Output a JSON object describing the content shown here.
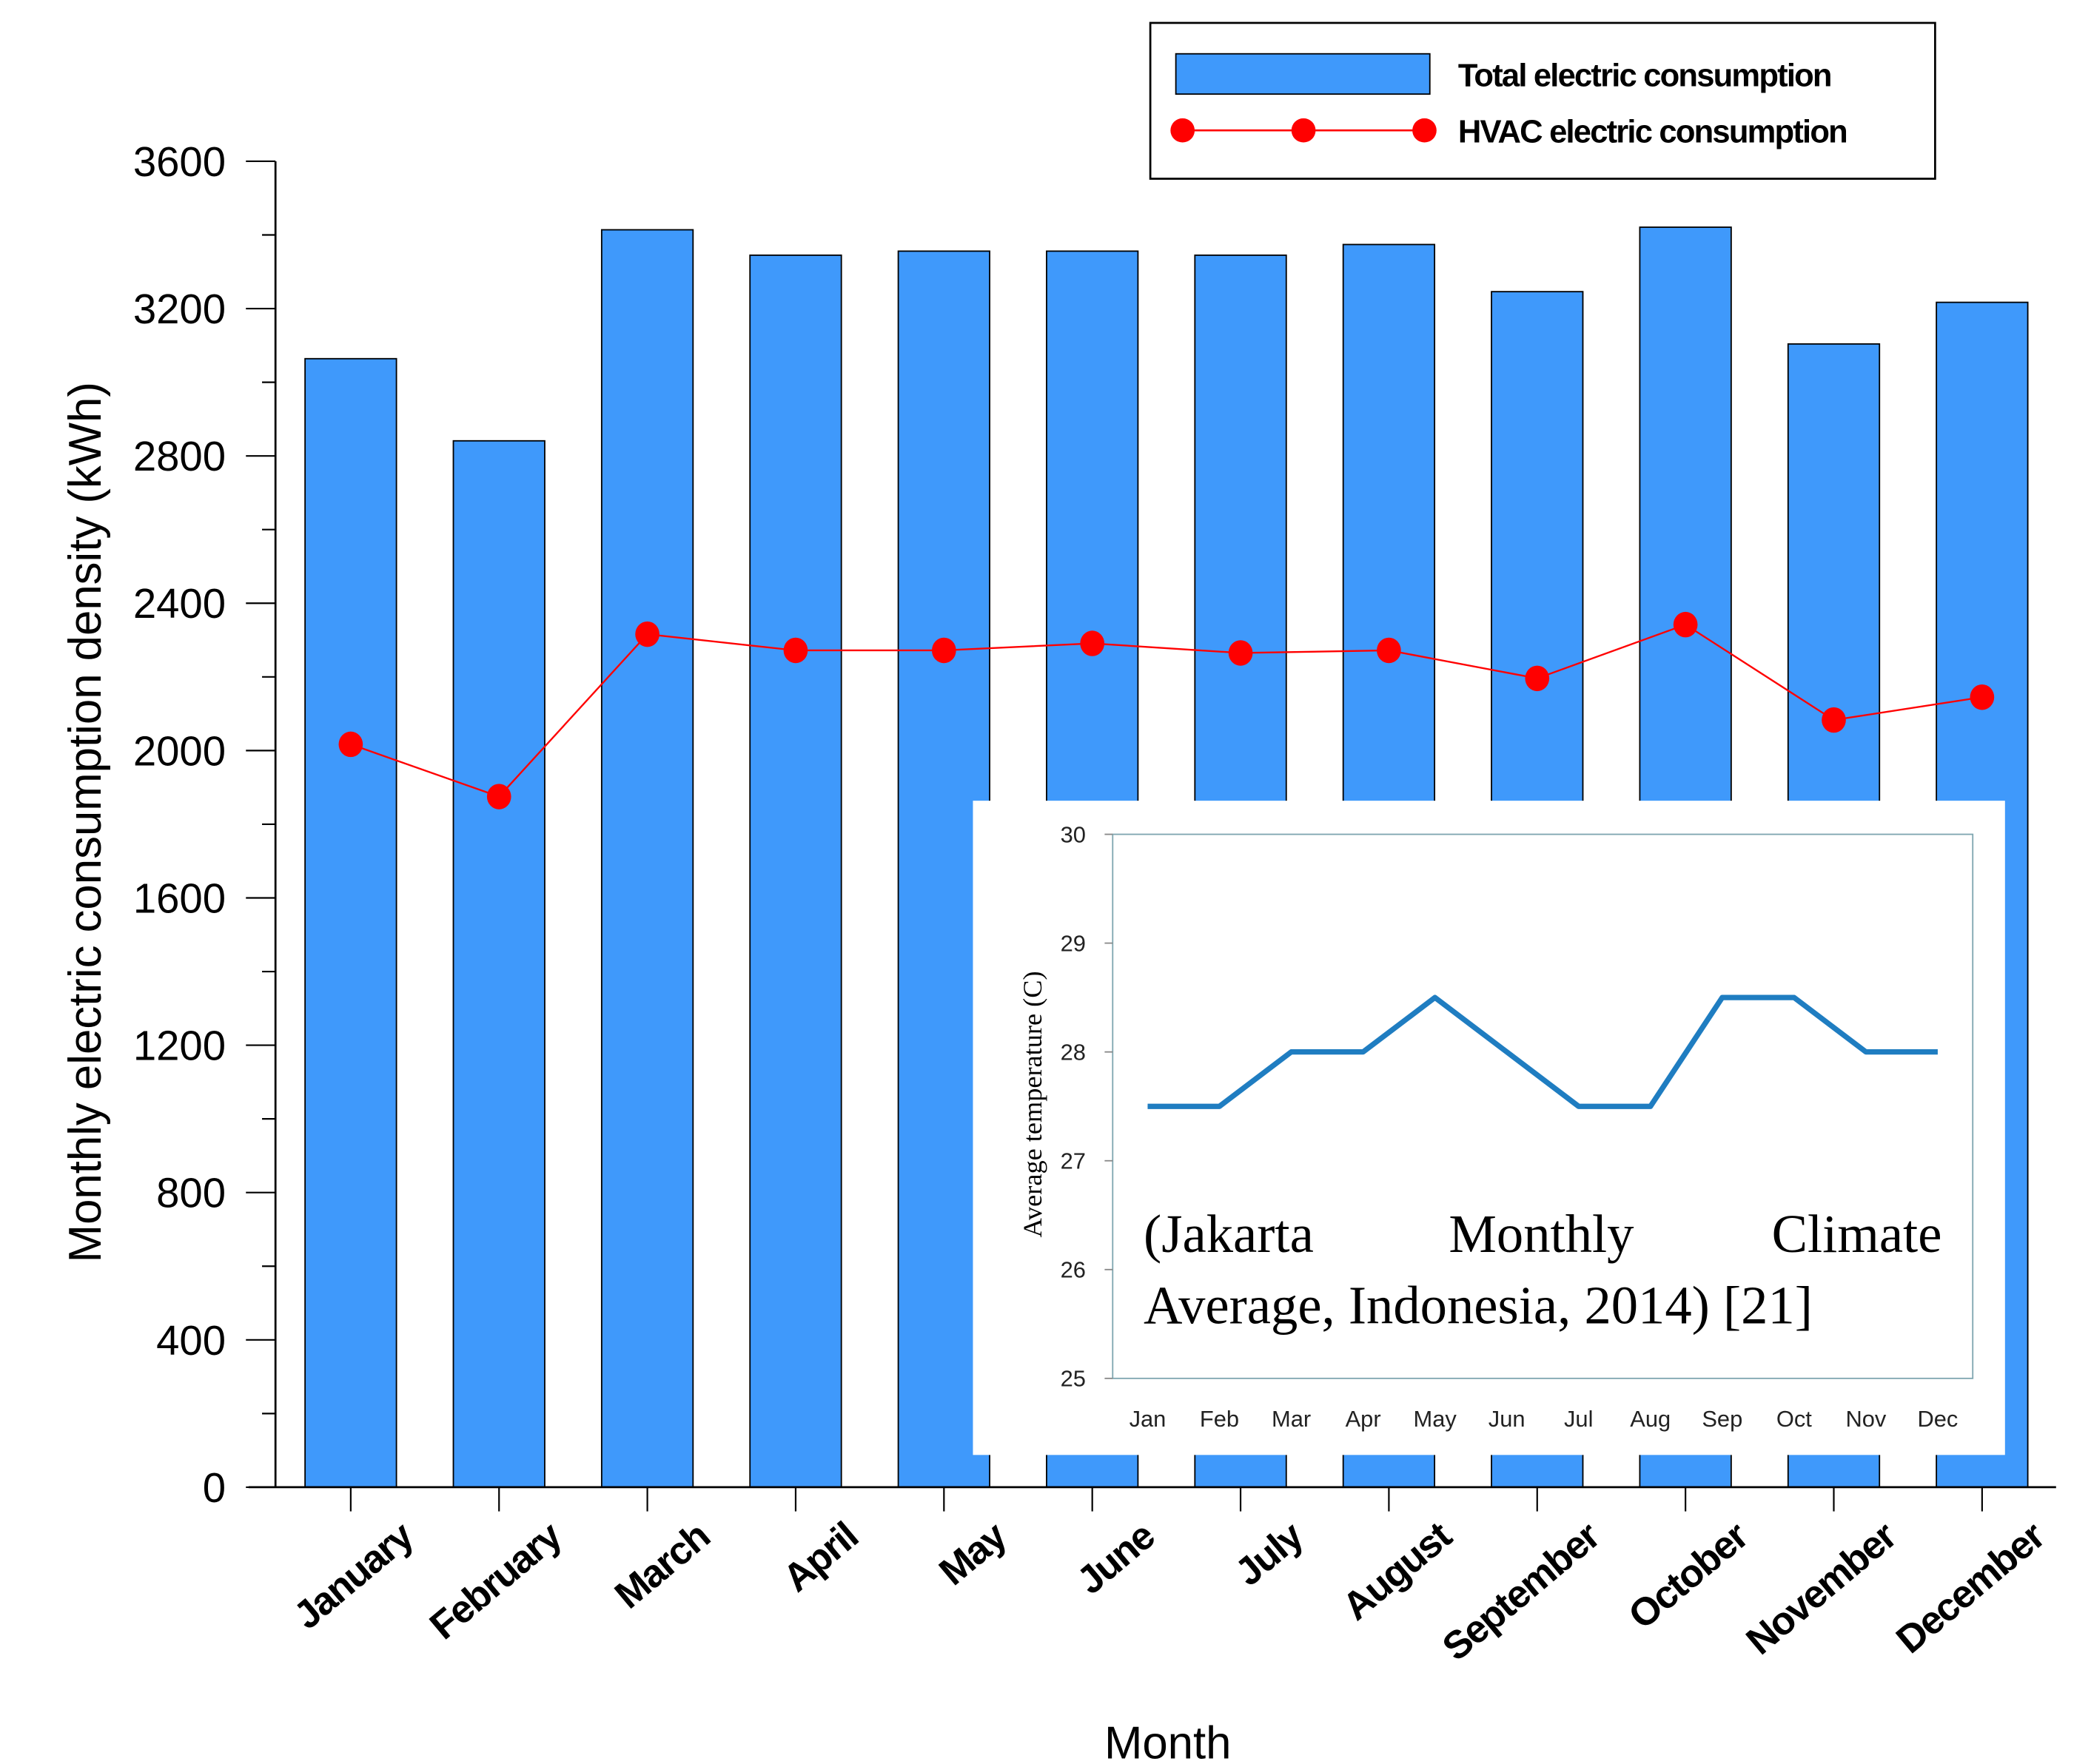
{
  "chart_data": [
    {
      "type": "bar+line",
      "title": "",
      "xlabel": "Month",
      "ylabel": "Monthly electric consumption density (kWh)",
      "ylim": [
        0,
        3600
      ],
      "yticks": [
        0,
        400,
        800,
        1200,
        1600,
        2000,
        2400,
        2800,
        3200,
        3600
      ],
      "categories": [
        "January",
        "February",
        "March",
        "April",
        "May",
        "June",
        "July",
        "August",
        "September",
        "October",
        "November",
        "December"
      ],
      "series": [
        {
          "name": "Total electric consumption",
          "kind": "bar",
          "color": "#3f99fb",
          "values": [
            3064,
            2841,
            3414,
            3345,
            3356,
            3356,
            3345,
            3374,
            3246,
            3421,
            3104,
            3217
          ]
        },
        {
          "name": "HVAC electric consumption",
          "kind": "line",
          "color": "#ff0000",
          "values": [
            2017,
            1875,
            2316,
            2272,
            2272,
            2291,
            2265,
            2272,
            2196,
            2342,
            2083,
            2145
          ]
        }
      ],
      "legend": "top-right",
      "grid": false
    },
    {
      "type": "line",
      "title": "",
      "xlabel": "",
      "ylabel": "Average temperature (C)",
      "ylim": [
        25,
        30
      ],
      "yticks": [
        25,
        26,
        27,
        28,
        29,
        30
      ],
      "categories": [
        "Jan",
        "Feb",
        "Mar",
        "Apr",
        "May",
        "Jun",
        "Jul",
        "Aug",
        "Sep",
        "Oct",
        "Nov",
        "Dec"
      ],
      "series": [
        {
          "name": "Average temperature",
          "color": "#1f7dc1",
          "values": [
            27.5,
            27.5,
            28,
            28,
            28.5,
            28,
            27.5,
            27.5,
            28.5,
            28.5,
            28,
            28
          ]
        }
      ],
      "annotation": {
        "line1_words": [
          "(Jakarta",
          "Monthly",
          "Climate"
        ],
        "line2": "Average, Indonesia, 2014) [21]"
      },
      "legend": "none",
      "grid": false
    }
  ]
}
